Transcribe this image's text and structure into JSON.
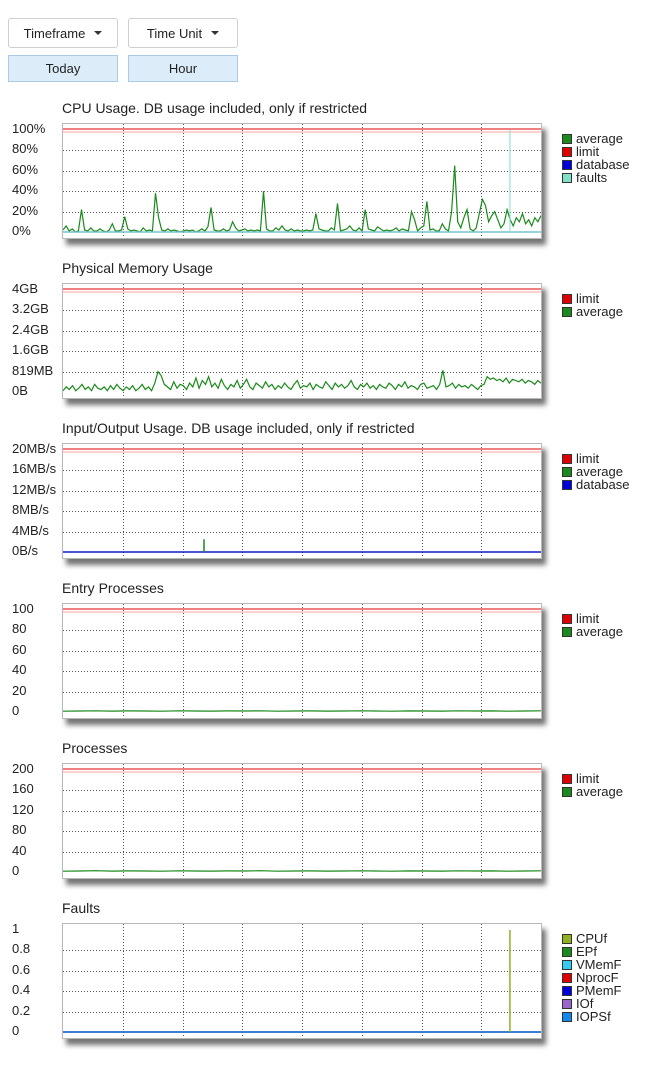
{
  "controls": {
    "timeframe_label": "Timeframe",
    "timeunit_label": "Time Unit",
    "timeframe_value": "Today",
    "timeunit_value": "Hour"
  },
  "chart_data": [
    {
      "type": "line",
      "title": "CPU Usage. DB usage included, only if restricted",
      "y_ticks": [
        "100%",
        "80%",
        "60%",
        "40%",
        "20%",
        "0%"
      ],
      "ylim": [
        0,
        100
      ],
      "grid": true,
      "legend_position": "right",
      "series": [
        {
          "name": "average",
          "color": "#1a8a1a",
          "values": [
            2,
            6,
            1,
            3,
            0,
            1,
            22,
            2,
            1,
            4,
            1,
            1,
            3,
            1,
            0,
            2,
            8,
            1,
            1,
            2,
            15,
            3,
            1,
            2,
            1,
            0,
            4,
            1,
            2,
            1,
            38,
            14,
            2,
            1,
            3,
            1,
            2,
            1,
            0,
            1,
            2,
            1,
            2,
            0,
            1,
            3,
            1,
            5,
            24,
            2,
            1,
            1,
            3,
            1,
            2,
            10,
            4,
            1,
            2,
            3,
            1,
            2,
            1,
            2,
            1,
            40,
            3,
            1,
            1,
            4,
            2,
            6,
            2,
            1,
            3,
            1,
            2,
            1,
            1,
            2,
            1,
            2,
            18,
            3,
            2,
            1,
            1,
            4,
            2,
            28,
            1,
            2,
            3,
            6,
            2,
            1,
            4,
            1,
            22,
            3,
            2,
            1,
            5,
            3,
            1,
            2,
            1,
            2,
            4,
            1,
            3,
            2,
            1,
            20,
            12,
            1,
            4,
            6,
            30,
            2,
            3,
            1,
            1,
            8,
            3,
            1,
            20,
            65,
            10,
            4,
            14,
            22,
            3,
            1,
            4,
            18,
            32,
            26,
            10,
            16,
            20,
            12,
            4,
            8,
            22,
            12,
            6,
            14,
            10,
            18,
            8,
            12,
            6,
            14,
            10,
            16
          ]
        },
        {
          "name": "limit",
          "color": "#e00000",
          "values": [
            100
          ]
        },
        {
          "name": "database",
          "color": "#0000dd",
          "values": [
            0
          ]
        },
        {
          "name": "faults",
          "color": "#7fe0c8",
          "values": [
            0
          ]
        }
      ]
    },
    {
      "type": "line",
      "title": "Physical Memory Usage",
      "y_ticks": [
        "4GB",
        "3.2GB",
        "2.4GB",
        "1.6GB",
        "819MB",
        "0B"
      ],
      "ylim": [
        0,
        4
      ],
      "grid": true,
      "legend_position": "right",
      "series": [
        {
          "name": "limit",
          "color": "#e00000",
          "values": [
            4
          ]
        },
        {
          "name": "average",
          "color": "#1a8a1a",
          "values": [
            0.05,
            0.2,
            0.1,
            0.25,
            0.05,
            0.15,
            0.3,
            0.1,
            0.2,
            0.05,
            0.3,
            0.15,
            0.1,
            0.2,
            0.05,
            0.25,
            0.1,
            0.3,
            0.15,
            0.05,
            0.2,
            0.1,
            0.25,
            0.05,
            0.15,
            0.3,
            0.1,
            0.2,
            0.05,
            0.35,
            0.8,
            0.65,
            0.3,
            0.2,
            0.1,
            0.4,
            0.15,
            0.3,
            0.25,
            0.1,
            0.35,
            0.2,
            0.55,
            0.15,
            0.45,
            0.3,
            0.6,
            0.2,
            0.35,
            0.15,
            0.5,
            0.25,
            0.1,
            0.3,
            0.2,
            0.45,
            0.15,
            0.3,
            0.5,
            0.2,
            0.1,
            0.35,
            0.25,
            0.15,
            0.4,
            0.2,
            0.3,
            0.1,
            0.25,
            0.15,
            0.35,
            0.2,
            0.1,
            0.3,
            0.45,
            0.15,
            0.25,
            0.2,
            0.35,
            0.1,
            0.3,
            0.2,
            0.15,
            0.4,
            0.25,
            0.1,
            0.35,
            0.2,
            0.3,
            0.15,
            0.25,
            0.45,
            0.2,
            0.1,
            0.3,
            0.2,
            0.35,
            0.15,
            0.25,
            0.1,
            0.3,
            0.2,
            0.15,
            0.35,
            0.25,
            0.1,
            0.3,
            0.2,
            0.4,
            0.15,
            0.25,
            0.2,
            0.1,
            0.3,
            0.35,
            0.15,
            0.2,
            0.25,
            0.1,
            0.3,
            0.85,
            0.2,
            0.25,
            0.35,
            0.15,
            0.3,
            0.2,
            0.25,
            0.15,
            0.3,
            0.2,
            0.1,
            0.25,
            0.3,
            0.6,
            0.5,
            0.55,
            0.45,
            0.5,
            0.4,
            0.55,
            0.35,
            0.5,
            0.45,
            0.4,
            0.5,
            0.35,
            0.45,
            0.4,
            0.3,
            0.45,
            0.35
          ]
        }
      ]
    },
    {
      "type": "line",
      "title": "Input/Output Usage. DB usage included, only if restricted",
      "y_ticks": [
        "20MB/s",
        "16MB/s",
        "12MB/s",
        "8MB/s",
        "4MB/s",
        "0B/s"
      ],
      "ylim": [
        0,
        20
      ],
      "grid": true,
      "legend_position": "right",
      "series": [
        {
          "name": "limit",
          "color": "#e00000",
          "values": [
            20
          ]
        },
        {
          "name": "average",
          "color": "#1a8a1a",
          "values": [
            0,
            0,
            0,
            0,
            0,
            0,
            0,
            0,
            0,
            0,
            0,
            0,
            0,
            0,
            0,
            0,
            0,
            0,
            0,
            0,
            0,
            0,
            0,
            0,
            0,
            0,
            0,
            0,
            0,
            0,
            0,
            0,
            0,
            0,
            0,
            0,
            0,
            0,
            0,
            0,
            0,
            0,
            0,
            0,
            0,
            0,
            0,
            0,
            0,
            0,
            0,
            0,
            0,
            0,
            0,
            0,
            0,
            0,
            0,
            0,
            0,
            0,
            0,
            0,
            0,
            0,
            0,
            0,
            0,
            0,
            0,
            0,
            0,
            0,
            0,
            0,
            0,
            0,
            0,
            0,
            0,
            0,
            0,
            0,
            0,
            0,
            0,
            0,
            0,
            0,
            0,
            0,
            0,
            0,
            0,
            0,
            0,
            0,
            0,
            0,
            0,
            0,
            0,
            0,
            0,
            0,
            0,
            0,
            0,
            0,
            0,
            0,
            0,
            0,
            0,
            0,
            0,
            0,
            0,
            0,
            0,
            0,
            0,
            0,
            0,
            0,
            0,
            0,
            0,
            0,
            0,
            0,
            0,
            0,
            0,
            0,
            0,
            0,
            0,
            0,
            0,
            0,
            0,
            0,
            0,
            0,
            0,
            0,
            0,
            0,
            0,
            0,
            0,
            0,
            0,
            0,
            0,
            0,
            0,
            0,
            0
          ]
        },
        {
          "name": "database",
          "color": "#0000dd",
          "values": [
            0
          ]
        }
      ],
      "spikes": [
        {
          "at": 0.295,
          "value": 2.5
        }
      ]
    },
    {
      "type": "line",
      "title": "Entry Processes",
      "y_ticks": [
        "100",
        "80",
        "60",
        "40",
        "20",
        "0"
      ],
      "ylim": [
        0,
        100
      ],
      "grid": true,
      "legend_position": "right",
      "series": [
        {
          "name": "limit",
          "color": "#e00000",
          "values": [
            100
          ]
        },
        {
          "name": "average",
          "color": "#1a8a1a",
          "values": [
            0.8,
            1,
            1.2,
            0.9,
            1.1,
            1,
            0.8,
            1.2,
            1,
            0.9,
            1.1,
            1,
            1.2,
            0.8,
            1,
            1.1,
            0.9,
            1,
            1.2,
            1,
            0.8,
            1.1,
            1,
            0.9,
            1.2,
            1,
            1.1,
            0.8,
            1,
            1.2
          ]
        }
      ]
    },
    {
      "type": "line",
      "title": "Processes",
      "y_ticks": [
        "200",
        "160",
        "120",
        "80",
        "40",
        "0"
      ],
      "ylim": [
        0,
        200
      ],
      "grid": true,
      "legend_position": "right",
      "series": [
        {
          "name": "limit",
          "color": "#e00000",
          "values": [
            200
          ]
        },
        {
          "name": "average",
          "color": "#1a8a1a",
          "values": [
            1.5,
            2,
            2.5,
            1.8,
            2.2,
            2,
            1.6,
            2.4,
            2,
            1.8,
            2.2,
            2,
            2.5,
            1.6,
            2,
            2.2,
            1.8,
            2,
            2.4,
            2,
            1.6,
            2.2,
            2,
            1.8,
            2.4,
            2,
            2.2,
            1.6,
            2,
            2.4
          ]
        }
      ]
    },
    {
      "type": "line",
      "title": "Faults",
      "y_ticks": [
        "1",
        "0.8",
        "0.6",
        "0.4",
        "0.2",
        "0"
      ],
      "ylim": [
        0,
        1
      ],
      "grid": true,
      "legend_position": "right",
      "series": [
        {
          "name": "CPUf",
          "color": "#8fb020",
          "values": [
            0
          ]
        },
        {
          "name": "EPf",
          "color": "#1a8a1a",
          "values": [
            0
          ]
        },
        {
          "name": "VMemF",
          "color": "#33ccee",
          "values": [
            0
          ]
        },
        {
          "name": "NprocF",
          "color": "#e00000",
          "values": [
            0
          ]
        },
        {
          "name": "PMemF",
          "color": "#0000dd",
          "values": [
            0
          ]
        },
        {
          "name": "IOf",
          "color": "#9966cc",
          "values": [
            0
          ]
        },
        {
          "name": "IOPSf",
          "color": "#1188ee",
          "values": [
            0
          ]
        }
      ],
      "spikes": [
        {
          "at": 0.935,
          "value": 1
        }
      ]
    }
  ]
}
